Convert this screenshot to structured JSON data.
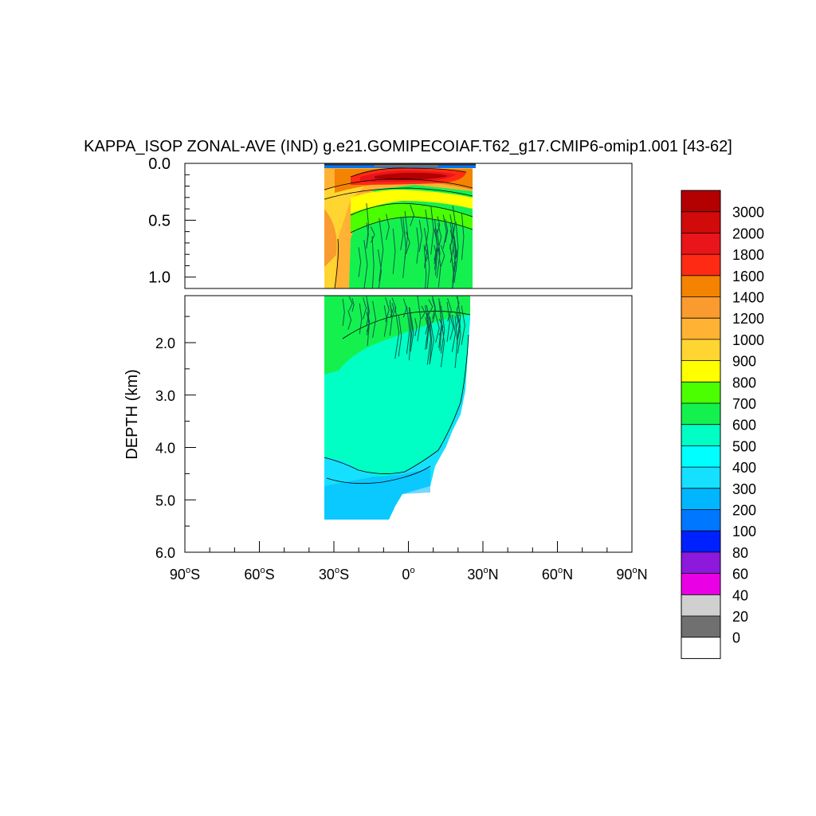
{
  "chart_data": {
    "type": "heatmap",
    "title": "KAPPA_ISOP ZONAL-AVE (IND) g.e21.GOMIPECOIAF.T62_g17.CMIP6-omip1.001 [43-62]",
    "ylabel": "DEPTH (km)",
    "xlabel": "",
    "xlim": [
      -90,
      90
    ],
    "ylim": [
      6.0,
      0.0
    ],
    "x_ticks": [
      {
        "value": -90,
        "num": "90",
        "hemi": "S"
      },
      {
        "value": -60,
        "num": "60",
        "hemi": "S"
      },
      {
        "value": -30,
        "num": "30",
        "hemi": "S"
      },
      {
        "value": 0,
        "num": "0",
        "hemi": ""
      },
      {
        "value": 30,
        "num": "30",
        "hemi": "N"
      },
      {
        "value": 60,
        "num": "60",
        "hemi": "N"
      },
      {
        "value": 90,
        "num": "90",
        "hemi": "N"
      }
    ],
    "degree_symbol": "o",
    "upper_panel": {
      "depth_range": [
        0.0,
        1.1
      ],
      "ticks": [
        "0.0",
        "0.5",
        "1.0"
      ],
      "tick_values": [
        0.0,
        0.5,
        1.0
      ]
    },
    "lower_panel": {
      "depth_range": [
        1.1,
        6.0
      ],
      "ticks": [
        "2.0",
        "3.0",
        "4.0",
        "5.0",
        "6.0"
      ],
      "tick_values": [
        2.0,
        3.0,
        4.0,
        5.0,
        6.0
      ]
    },
    "data_extent": {
      "lat_min": -34,
      "lat_max": 26
    },
    "colorbar": {
      "levels": [
        "3000",
        "2000",
        "1800",
        "1600",
        "1400",
        "1200",
        "1000",
        "900",
        "800",
        "700",
        "600",
        "500",
        "400",
        "300",
        "200",
        "100",
        "80",
        "60",
        "40",
        "20",
        "0"
      ],
      "colors": [
        "#b30000",
        "#d10a0a",
        "#e8151b",
        "#ff2a14",
        "#f38300",
        "#f99b2e",
        "#ffb233",
        "#ffd531",
        "#ffff00",
        "#4cff00",
        "#14f14f",
        "#00ffc4",
        "#00ffff",
        "#16e0ff",
        "#00b6ff",
        "#0077ff",
        "#0021ff",
        "#8c19db",
        "#ea00e5",
        "#d0d0d0",
        "#707070",
        "#ffffff"
      ]
    },
    "regions": [
      {
        "name": "surface-band",
        "value_range": "0-100"
      },
      {
        "name": "subsurface-maximum",
        "value_range": "1600-3000",
        "lat_range": [
          -10,
          22
        ],
        "depth_range": [
          0.1,
          0.2
        ]
      },
      {
        "name": "upper-ocean",
        "value_range": "700-1400",
        "depth_range": [
          0.0,
          1.1
        ]
      },
      {
        "name": "mid-depth",
        "value_range": "500-700"
      },
      {
        "name": "deep-interior",
        "value_range": "400-500",
        "depth_range": [
          1.5,
          4.5
        ]
      },
      {
        "name": "abyssal",
        "value_range": "300-400",
        "depth_range": [
          4.3,
          5.4
        ]
      }
    ]
  }
}
